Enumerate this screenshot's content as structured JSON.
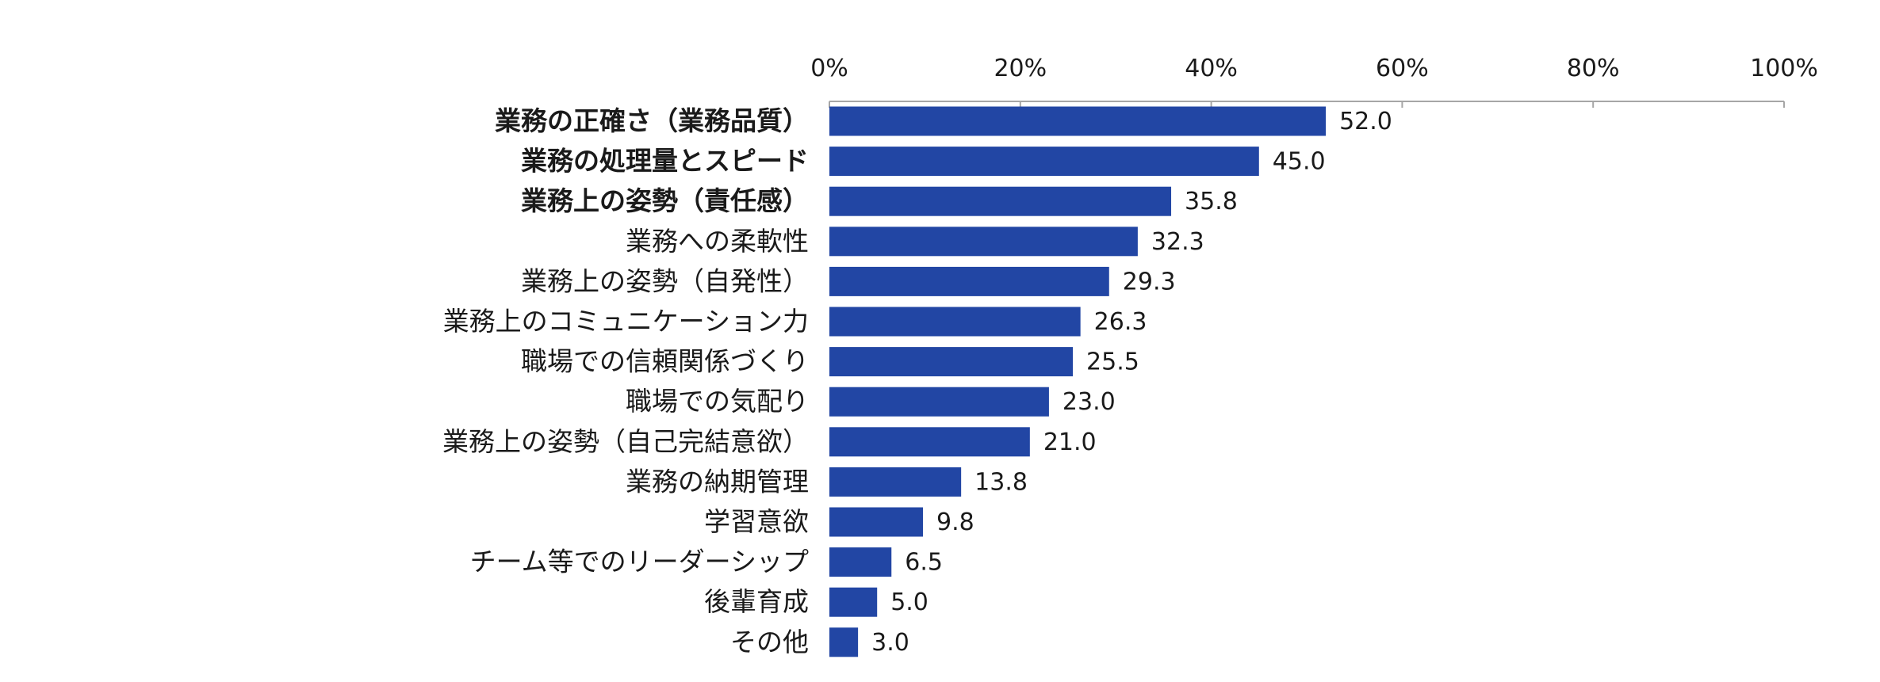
{
  "chart_data": {
    "type": "bar",
    "orientation": "horizontal",
    "categories": [
      "業務の正確さ（業務品質）",
      "業務の処理量とスピード",
      "業務上の姿勢（責任感）",
      "業務への柔軟性",
      "業務上の姿勢（自発性）",
      "業務上のコミュニケーション力",
      "職場での信頼関係づくり",
      "職場での気配り",
      "業務上の姿勢（自己完結意欲）",
      "業務の納期管理",
      "学習意欲",
      "チーム等でのリーダーシップ",
      "後輩育成",
      "その他"
    ],
    "values": [
      52.0,
      45.0,
      35.8,
      32.3,
      29.3,
      26.3,
      25.5,
      23.0,
      21.0,
      13.8,
      9.8,
      6.5,
      5.0,
      3.0
    ],
    "value_labels": [
      "52.0",
      "45.0",
      "35.8",
      "32.3",
      "29.3",
      "26.3",
      "25.5",
      "23.0",
      "21.0",
      "13.8",
      "9.8",
      "6.5",
      "5.0",
      "3.0"
    ],
    "bold_categories": [
      0,
      1,
      2
    ],
    "x_ticks": [
      "0%",
      "20%",
      "40%",
      "60%",
      "80%",
      "100%"
    ],
    "xlim": [
      0,
      100
    ],
    "axis_position": "top",
    "grid": false,
    "legend": "none",
    "bar_color": "#2246A4",
    "axis_color": "#a6a6a6",
    "text_color": "#1a1a1a"
  }
}
